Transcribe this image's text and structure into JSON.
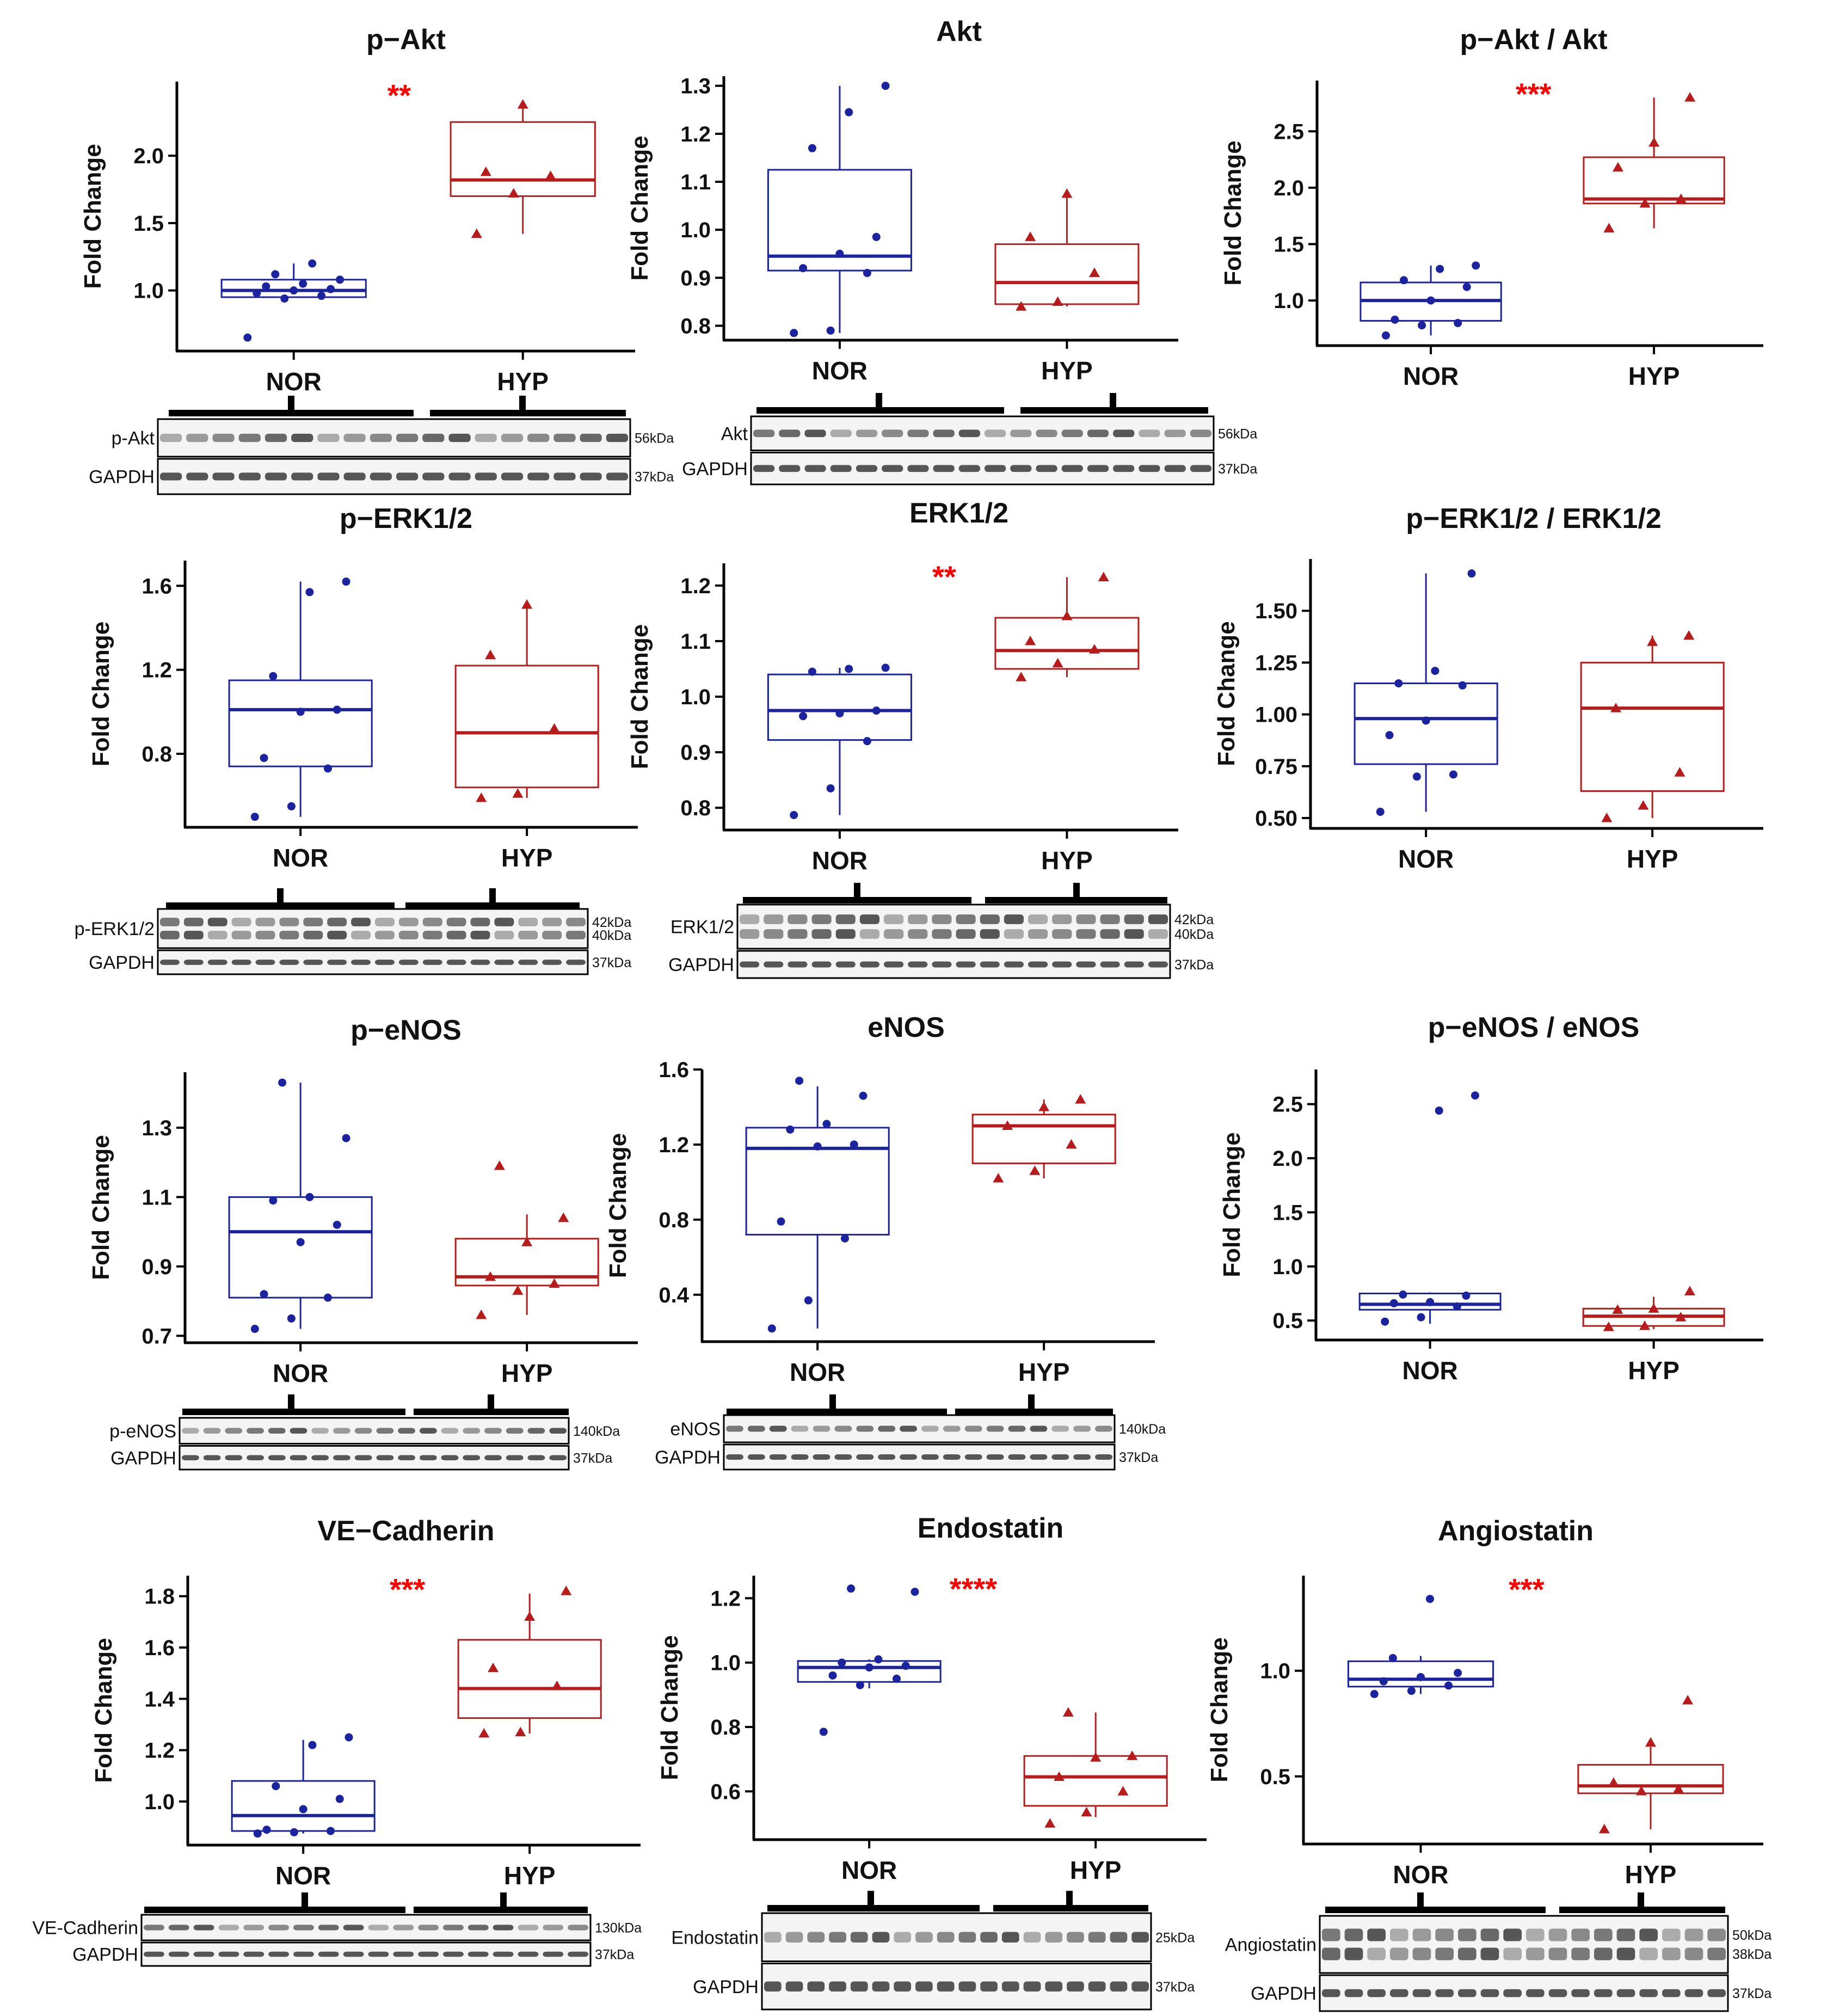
{
  "figure": {
    "y_axis_label": "Fold Change",
    "groups": [
      "NOR",
      "HYP"
    ],
    "colors": {
      "NOR": "#1c239e",
      "HYP": "#b71c1c",
      "significance": "#ff0000"
    },
    "markers": {
      "NOR": "circle",
      "HYP": "triangle"
    }
  },
  "chart_data": [
    {
      "type": "box",
      "title": "p−Akt",
      "ylabel": "Fold Change",
      "significance": "**",
      "y_ticks": [
        1.0,
        1.5,
        2.0
      ],
      "tick_labels": [
        "1.0",
        "1.5",
        "2.0"
      ],
      "ylim": [
        0.55,
        2.55
      ],
      "series": [
        {
          "name": "NOR",
          "q1": 0.95,
          "median": 1.0,
          "q3": 1.08,
          "whisker_low": 0.95,
          "whisker_high": 1.2,
          "points": [
            0.65,
            0.94,
            0.96,
            0.98,
            1.0,
            1.01,
            1.03,
            1.05,
            1.08,
            1.12,
            1.2
          ]
        },
        {
          "name": "HYP",
          "q1": 1.7,
          "median": 1.82,
          "q3": 2.25,
          "whisker_low": 1.42,
          "whisker_high": 2.4,
          "points": [
            1.42,
            1.72,
            1.85,
            1.88,
            2.38
          ]
        }
      ],
      "blot": {
        "rows": [
          {
            "label": "p-Akt",
            "kda": [
              "56kDa"
            ]
          },
          {
            "label": "GAPDH",
            "kda": [
              "37kDa"
            ]
          }
        ]
      }
    },
    {
      "type": "box",
      "title": "Akt",
      "ylabel": "Fold Change",
      "significance": "",
      "y_ticks": [
        0.8,
        0.9,
        1.0,
        1.1,
        1.2,
        1.3
      ],
      "tick_labels": [
        "0.8",
        "0.9",
        "1.0",
        "1.1",
        "1.2",
        "1.3"
      ],
      "ylim": [
        0.77,
        1.32
      ],
      "series": [
        {
          "name": "NOR",
          "q1": 0.915,
          "median": 0.945,
          "q3": 1.125,
          "whisker_low": 0.785,
          "whisker_high": 1.3,
          "points": [
            0.785,
            0.79,
            0.91,
            0.92,
            0.95,
            0.985,
            1.17,
            1.245,
            1.3
          ]
        },
        {
          "name": "HYP",
          "q1": 0.845,
          "median": 0.89,
          "q3": 0.97,
          "whisker_low": 0.84,
          "whisker_high": 1.075,
          "points": [
            0.84,
            0.85,
            0.91,
            0.985,
            1.075
          ]
        }
      ],
      "blot": {
        "rows": [
          {
            "label": "Akt",
            "kda": [
              "56kDa"
            ]
          },
          {
            "label": "GAPDH",
            "kda": [
              "37kDa"
            ]
          }
        ]
      }
    },
    {
      "type": "box",
      "title": "p−Akt / Akt",
      "ylabel": "Fold Change",
      "significance": "***",
      "y_ticks": [
        1.0,
        1.5,
        2.0,
        2.5
      ],
      "tick_labels": [
        "1.0",
        "1.5",
        "2.0",
        "2.5"
      ],
      "ylim": [
        0.6,
        2.95
      ],
      "series": [
        {
          "name": "NOR",
          "q1": 0.82,
          "median": 1.0,
          "q3": 1.16,
          "whisker_low": 0.69,
          "whisker_high": 1.31,
          "points": [
            0.69,
            0.78,
            0.8,
            0.83,
            1.0,
            1.12,
            1.18,
            1.28,
            1.31
          ]
        },
        {
          "name": "HYP",
          "q1": 1.86,
          "median": 1.9,
          "q3": 2.27,
          "whisker_low": 1.64,
          "whisker_high": 2.8,
          "points": [
            1.64,
            1.86,
            1.9,
            2.18,
            2.4,
            2.8
          ]
        }
      ]
    },
    {
      "type": "box",
      "title": "p−ERK1/2",
      "ylabel": "Fold Change",
      "significance": "",
      "y_ticks": [
        0.8,
        1.2,
        1.6
      ],
      "tick_labels": [
        "0.8",
        "1.2",
        "1.6"
      ],
      "ylim": [
        0.45,
        1.72
      ],
      "series": [
        {
          "name": "NOR",
          "q1": 0.74,
          "median": 1.01,
          "q3": 1.15,
          "whisker_low": 0.5,
          "whisker_high": 1.62,
          "points": [
            0.5,
            0.55,
            0.73,
            0.78,
            1.0,
            1.01,
            1.17,
            1.57,
            1.62
          ]
        },
        {
          "name": "HYP",
          "q1": 0.64,
          "median": 0.9,
          "q3": 1.22,
          "whisker_low": 0.59,
          "whisker_high": 1.51,
          "points": [
            0.59,
            0.61,
            0.92,
            1.27,
            1.51
          ]
        }
      ],
      "blot": {
        "rows": [
          {
            "label": "p-ERK1/2",
            "kda": [
              "42kDa",
              "40kDa"
            ]
          },
          {
            "label": "GAPDH",
            "kda": [
              "37kDa"
            ]
          }
        ]
      }
    },
    {
      "type": "box",
      "title": "ERK1/2",
      "ylabel": "Fold Change",
      "significance": "**",
      "y_ticks": [
        0.8,
        0.9,
        1.0,
        1.1,
        1.2
      ],
      "tick_labels": [
        "0.8",
        "0.9",
        "1.0",
        "1.1",
        "1.2"
      ],
      "ylim": [
        0.76,
        1.24
      ],
      "series": [
        {
          "name": "NOR",
          "q1": 0.922,
          "median": 0.975,
          "q3": 1.04,
          "whisker_low": 0.787,
          "whisker_high": 1.052,
          "points": [
            0.787,
            0.835,
            0.92,
            0.965,
            0.97,
            0.975,
            1.045,
            1.05,
            1.052
          ]
        },
        {
          "name": "HYP",
          "q1": 1.05,
          "median": 1.083,
          "q3": 1.142,
          "whisker_low": 1.035,
          "whisker_high": 1.215,
          "points": [
            1.035,
            1.06,
            1.085,
            1.1,
            1.145,
            1.215
          ]
        }
      ],
      "blot": {
        "rows": [
          {
            "label": "ERK1/2",
            "kda": [
              "42kDa",
              "40kDa"
            ]
          },
          {
            "label": "GAPDH",
            "kda": [
              "37kDa"
            ]
          }
        ]
      }
    },
    {
      "type": "box",
      "title": "p−ERK1/2 / ERK1/2",
      "ylabel": "Fold Change",
      "significance": "",
      "y_ticks": [
        0.5,
        0.75,
        1.0,
        1.25,
        1.5
      ],
      "tick_labels": [
        "0.50",
        "0.75",
        "1.00",
        "1.25",
        "1.50"
      ],
      "ylim": [
        0.45,
        1.75
      ],
      "series": [
        {
          "name": "NOR",
          "q1": 0.76,
          "median": 0.98,
          "q3": 1.15,
          "whisker_low": 0.53,
          "whisker_high": 1.68,
          "points": [
            0.53,
            0.7,
            0.71,
            0.9,
            0.97,
            1.14,
            1.15,
            1.21,
            1.68
          ]
        },
        {
          "name": "HYP",
          "q1": 0.63,
          "median": 1.03,
          "q3": 1.25,
          "whisker_low": 0.5,
          "whisker_high": 1.38,
          "points": [
            0.5,
            0.56,
            0.72,
            1.03,
            1.35,
            1.38
          ]
        }
      ]
    },
    {
      "type": "box",
      "title": "p−eNOS",
      "ylabel": "Fold Change",
      "significance": "",
      "y_ticks": [
        0.7,
        0.9,
        1.1,
        1.3
      ],
      "tick_labels": [
        "0.7",
        "0.9",
        "1.1",
        "1.3"
      ],
      "ylim": [
        0.68,
        1.46
      ],
      "series": [
        {
          "name": "NOR",
          "q1": 0.81,
          "median": 1.0,
          "q3": 1.1,
          "whisker_low": 0.72,
          "whisker_high": 1.43,
          "points": [
            0.72,
            0.75,
            0.81,
            0.82,
            0.97,
            1.02,
            1.09,
            1.1,
            1.27,
            1.43
          ]
        },
        {
          "name": "HYP",
          "q1": 0.845,
          "median": 0.87,
          "q3": 0.98,
          "whisker_low": 0.76,
          "whisker_high": 1.05,
          "points": [
            0.76,
            0.83,
            0.85,
            0.87,
            0.97,
            1.04,
            1.19
          ]
        }
      ],
      "blot": {
        "rows": [
          {
            "label": "p-eNOS",
            "kda": [
              "140kDa"
            ]
          },
          {
            "label": "GAPDH",
            "kda": [
              "37kDa"
            ]
          }
        ]
      }
    },
    {
      "type": "box",
      "title": "eNOS",
      "ylabel": "Fold Change",
      "significance": "",
      "y_ticks": [
        0.4,
        0.8,
        1.2,
        1.6
      ],
      "tick_labels": [
        "0.4",
        "0.8",
        "1.2",
        "1.6"
      ],
      "ylim": [
        0.15,
        1.6
      ],
      "series": [
        {
          "name": "NOR",
          "q1": 0.72,
          "median": 1.18,
          "q3": 1.29,
          "whisker_low": 0.22,
          "whisker_high": 1.51,
          "points": [
            0.22,
            0.37,
            0.7,
            0.79,
            1.19,
            1.2,
            1.28,
            1.31,
            1.46,
            1.54
          ]
        },
        {
          "name": "HYP",
          "q1": 1.1,
          "median": 1.3,
          "q3": 1.36,
          "whisker_low": 1.02,
          "whisker_high": 1.44,
          "points": [
            1.02,
            1.06,
            1.2,
            1.3,
            1.4,
            1.44
          ]
        }
      ],
      "blot": {
        "rows": [
          {
            "label": "eNOS",
            "kda": [
              "140kDa"
            ]
          },
          {
            "label": "GAPDH",
            "kda": [
              "37kDa"
            ]
          }
        ]
      }
    },
    {
      "type": "box",
      "title": "p−eNOS / eNOS",
      "ylabel": "Fold Change",
      "significance": "",
      "y_ticks": [
        0.5,
        1.0,
        1.5,
        2.0,
        2.5
      ],
      "tick_labels": [
        "0.5",
        "1.0",
        "1.5",
        "2.0",
        "2.5"
      ],
      "ylim": [
        0.32,
        2.82
      ],
      "series": [
        {
          "name": "NOR",
          "q1": 0.6,
          "median": 0.65,
          "q3": 0.75,
          "whisker_low": 0.47,
          "whisker_high": 0.76,
          "points": [
            0.49,
            0.53,
            0.63,
            0.66,
            0.67,
            0.73,
            0.74,
            2.44,
            2.58
          ]
        },
        {
          "name": "HYP",
          "q1": 0.45,
          "median": 0.54,
          "q3": 0.61,
          "whisker_low": 0.42,
          "whisker_high": 0.72,
          "points": [
            0.44,
            0.45,
            0.53,
            0.6,
            0.61,
            0.77
          ]
        }
      ]
    },
    {
      "type": "box",
      "title": "VE−Cadherin",
      "ylabel": "Fold Change",
      "significance": "***",
      "y_ticks": [
        1.0,
        1.2,
        1.4,
        1.6,
        1.8
      ],
      "tick_labels": [
        "1.0",
        "1.2",
        "1.4",
        "1.6",
        "1.8"
      ],
      "ylim": [
        0.83,
        1.88
      ],
      "series": [
        {
          "name": "NOR",
          "q1": 0.885,
          "median": 0.945,
          "q3": 1.08,
          "whisker_low": 0.875,
          "whisker_high": 1.24,
          "points": [
            0.875,
            0.88,
            0.885,
            0.89,
            0.97,
            1.01,
            1.06,
            1.22,
            1.25
          ]
        },
        {
          "name": "HYP",
          "q1": 1.325,
          "median": 1.44,
          "q3": 1.63,
          "whisker_low": 1.265,
          "whisker_high": 1.81,
          "points": [
            1.265,
            1.27,
            1.45,
            1.52,
            1.72,
            1.82
          ]
        }
      ],
      "blot": {
        "rows": [
          {
            "label": "VE-Cadherin",
            "kda": [
              "130kDa"
            ]
          },
          {
            "label": "GAPDH",
            "kda": [
              "37kDa"
            ]
          }
        ]
      }
    },
    {
      "type": "box",
      "title": "Endostatin",
      "ylabel": "Fold Change",
      "significance": "****",
      "y_ticks": [
        0.6,
        0.8,
        1.0,
        1.2
      ],
      "tick_labels": [
        "0.6",
        "0.8",
        "1.0",
        "1.2"
      ],
      "ylim": [
        0.45,
        1.27
      ],
      "series": [
        {
          "name": "NOR",
          "q1": 0.94,
          "median": 0.985,
          "q3": 1.005,
          "whisker_low": 0.92,
          "whisker_high": 1.01,
          "points": [
            0.785,
            0.93,
            0.95,
            0.96,
            0.985,
            0.99,
            1.0,
            1.01,
            1.22,
            1.23
          ]
        },
        {
          "name": "HYP",
          "q1": 0.555,
          "median": 0.645,
          "q3": 0.71,
          "whisker_low": 0.52,
          "whisker_high": 0.845,
          "points": [
            0.5,
            0.535,
            0.6,
            0.645,
            0.705,
            0.71,
            0.845
          ]
        }
      ],
      "blot": {
        "rows": [
          {
            "label": "Endostatin",
            "kda": [
              "25kDa"
            ]
          },
          {
            "label": "GAPDH",
            "kda": [
              "37kDa"
            ]
          }
        ]
      }
    },
    {
      "type": "box",
      "title": "Angiostatin",
      "ylabel": "Fold Change",
      "significance": "***",
      "y_ticks": [
        0.5,
        1.0
      ],
      "tick_labels": [
        "0.5",
        "1.0"
      ],
      "ylim": [
        0.18,
        1.45
      ],
      "series": [
        {
          "name": "NOR",
          "q1": 0.925,
          "median": 0.96,
          "q3": 1.045,
          "whisker_low": 0.89,
          "whisker_high": 1.07,
          "points": [
            0.89,
            0.905,
            0.93,
            0.95,
            0.97,
            0.99,
            1.06,
            1.34
          ]
        },
        {
          "name": "HYP",
          "q1": 0.42,
          "median": 0.455,
          "q3": 0.555,
          "whisker_low": 0.25,
          "whisker_high": 0.64,
          "points": [
            0.25,
            0.43,
            0.44,
            0.47,
            0.66,
            0.86
          ]
        }
      ],
      "blot": {
        "rows": [
          {
            "label": "Angiostatin",
            "kda": [
              "50kDa",
              "38kDa"
            ]
          },
          {
            "label": "GAPDH",
            "kda": [
              "37kDa"
            ]
          }
        ]
      }
    }
  ]
}
